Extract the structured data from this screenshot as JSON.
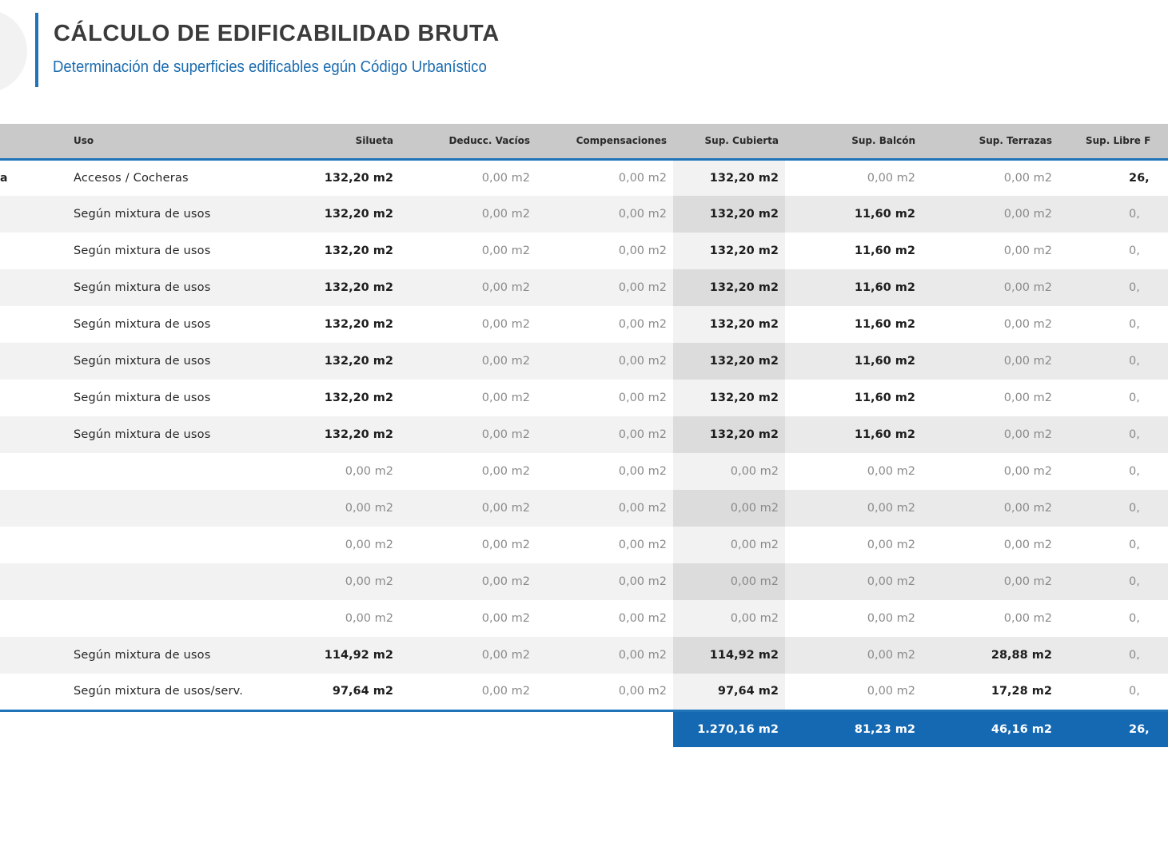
{
  "header": {
    "title": "CÁLCULO DE EDIFICABILIDAD BRUTA",
    "subtitle": "Determinación de superficies edificables egún Código Urbanístico"
  },
  "table": {
    "columns": {
      "uso": "Uso",
      "silueta": "Silueta",
      "deducc_vacios": "Deducc. Vacíos",
      "compensaciones": "Compensaciones",
      "sup_cubierta": "Sup. Cubierta",
      "sup_balcon": "Sup. Balcón",
      "sup_terrazas": "Sup. Terrazas",
      "sup_libre": "Sup. Libre F"
    },
    "rows": [
      {
        "first": "a",
        "uso": "Accesos / Cocheras",
        "silueta": "132,20 m2",
        "deducc": "0,00 m2",
        "comp": "0,00 m2",
        "cubierta": "132,20 m2",
        "balcon": "0,00 m2",
        "terrazas": "0,00 m2",
        "libre": "26,"
      },
      {
        "first": "",
        "uso": "Según mixtura de usos",
        "silueta": "132,20 m2",
        "deducc": "0,00 m2",
        "comp": "0,00 m2",
        "cubierta": "132,20 m2",
        "balcon": "11,60 m2",
        "terrazas": "0,00 m2",
        "libre": "0,"
      },
      {
        "first": "",
        "uso": "Según mixtura de usos",
        "silueta": "132,20 m2",
        "deducc": "0,00 m2",
        "comp": "0,00 m2",
        "cubierta": "132,20 m2",
        "balcon": "11,60 m2",
        "terrazas": "0,00 m2",
        "libre": "0,"
      },
      {
        "first": "",
        "uso": "Según mixtura de usos",
        "silueta": "132,20 m2",
        "deducc": "0,00 m2",
        "comp": "0,00 m2",
        "cubierta": "132,20 m2",
        "balcon": "11,60 m2",
        "terrazas": "0,00 m2",
        "libre": "0,"
      },
      {
        "first": "",
        "uso": "Según mixtura de usos",
        "silueta": "132,20 m2",
        "deducc": "0,00 m2",
        "comp": "0,00 m2",
        "cubierta": "132,20 m2",
        "balcon": "11,60 m2",
        "terrazas": "0,00 m2",
        "libre": "0,"
      },
      {
        "first": "",
        "uso": "Según mixtura de usos",
        "silueta": "132,20 m2",
        "deducc": "0,00 m2",
        "comp": "0,00 m2",
        "cubierta": "132,20 m2",
        "balcon": "11,60 m2",
        "terrazas": "0,00 m2",
        "libre": "0,"
      },
      {
        "first": "",
        "uso": "Según mixtura de usos",
        "silueta": "132,20 m2",
        "deducc": "0,00 m2",
        "comp": "0,00 m2",
        "cubierta": "132,20 m2",
        "balcon": "11,60 m2",
        "terrazas": "0,00 m2",
        "libre": "0,"
      },
      {
        "first": "",
        "uso": "Según mixtura de usos",
        "silueta": "132,20 m2",
        "deducc": "0,00 m2",
        "comp": "0,00 m2",
        "cubierta": "132,20 m2",
        "balcon": "11,60 m2",
        "terrazas": "0,00 m2",
        "libre": "0,"
      },
      {
        "first": "",
        "uso": "",
        "silueta": "0,00 m2",
        "deducc": "0,00 m2",
        "comp": "0,00 m2",
        "cubierta": "0,00 m2",
        "balcon": "0,00 m2",
        "terrazas": "0,00 m2",
        "libre": "0,"
      },
      {
        "first": "",
        "uso": "",
        "silueta": "0,00 m2",
        "deducc": "0,00 m2",
        "comp": "0,00 m2",
        "cubierta": "0,00 m2",
        "balcon": "0,00 m2",
        "terrazas": "0,00 m2",
        "libre": "0,"
      },
      {
        "first": "",
        "uso": "",
        "silueta": "0,00 m2",
        "deducc": "0,00 m2",
        "comp": "0,00 m2",
        "cubierta": "0,00 m2",
        "balcon": "0,00 m2",
        "terrazas": "0,00 m2",
        "libre": "0,"
      },
      {
        "first": "",
        "uso": "",
        "silueta": "0,00 m2",
        "deducc": "0,00 m2",
        "comp": "0,00 m2",
        "cubierta": "0,00 m2",
        "balcon": "0,00 m2",
        "terrazas": "0,00 m2",
        "libre": "0,"
      },
      {
        "first": "",
        "uso": "",
        "silueta": "0,00 m2",
        "deducc": "0,00 m2",
        "comp": "0,00 m2",
        "cubierta": "0,00 m2",
        "balcon": "0,00 m2",
        "terrazas": "0,00 m2",
        "libre": "0,"
      },
      {
        "first": "",
        "uso": "Según mixtura de usos",
        "silueta": "114,92 m2",
        "deducc": "0,00 m2",
        "comp": "0,00 m2",
        "cubierta": "114,92 m2",
        "balcon": "0,00 m2",
        "terrazas": "28,88 m2",
        "libre": "0,"
      },
      {
        "first": "",
        "uso": "Según mixtura de usos/serv.",
        "silueta": "97,64 m2",
        "deducc": "0,00 m2",
        "comp": "0,00 m2",
        "cubierta": "97,64 m2",
        "balcon": "0,00 m2",
        "terrazas": "17,28 m2",
        "libre": "0,"
      }
    ],
    "totals": {
      "cubierta": "1.270,16 m2",
      "balcon": "81,23 m2",
      "terrazas": "46,16 m2",
      "libre": "26,"
    }
  },
  "colors": {
    "accent_blue": "#1f73b9",
    "total_bar": "#1569b3",
    "header_gray": "#c9c9c9"
  }
}
